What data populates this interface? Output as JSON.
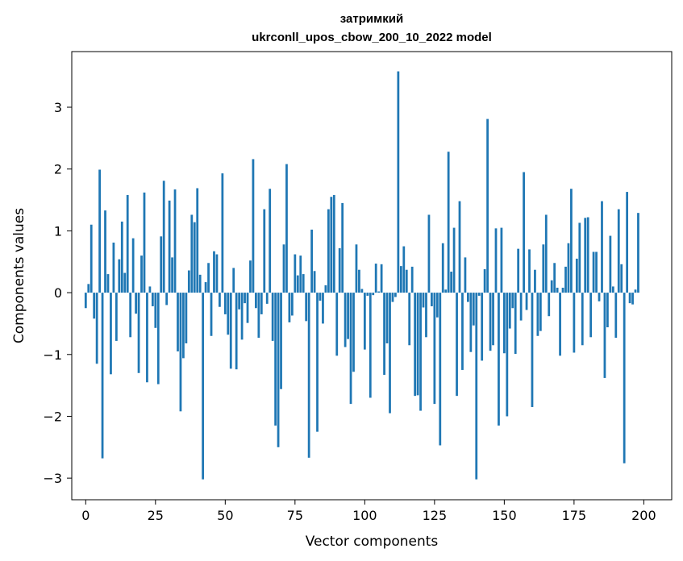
{
  "chart_data": {
    "type": "bar",
    "title": "затримкий",
    "subtitle": "ukrconll_upos_cbow_200_10_2022 model",
    "xlabel": "Vector components",
    "ylabel": "Components values",
    "xlim": [
      -5,
      210
    ],
    "ylim": [
      -3.35,
      3.9
    ],
    "x_ticks": [
      0,
      25,
      50,
      75,
      100,
      125,
      150,
      175,
      200
    ],
    "y_ticks": [
      -3,
      -2,
      -1,
      0,
      1,
      2,
      3
    ],
    "x_tick_labels": [
      "0",
      "25",
      "50",
      "75",
      "100",
      "125",
      "150",
      "175",
      "200"
    ],
    "y_tick_labels": [
      "−3",
      "−2",
      "−1",
      "0",
      "1",
      "2",
      "3"
    ],
    "grid": false,
    "bar_color": "#1f77b4",
    "values": [
      -0.25,
      0.14,
      1.1,
      -0.42,
      -1.15,
      1.99,
      -2.68,
      1.33,
      0.3,
      -1.32,
      0.81,
      -0.78,
      0.54,
      1.15,
      0.32,
      1.58,
      -0.72,
      0.88,
      -0.34,
      -1.3,
      0.6,
      1.62,
      -1.45,
      0.1,
      -0.22,
      -0.57,
      -1.48,
      0.91,
      1.81,
      -0.2,
      1.49,
      0.57,
      1.67,
      -0.95,
      -1.92,
      -1.06,
      -0.82,
      0.36,
      1.26,
      1.14,
      1.69,
      0.29,
      -3.02,
      0.17,
      0.48,
      -0.7,
      0.67,
      0.62,
      -0.23,
      1.93,
      -0.35,
      -0.68,
      -1.23,
      0.4,
      -1.24,
      -0.27,
      -0.76,
      -0.17,
      -0.49,
      0.52,
      2.16,
      -0.25,
      -0.73,
      -0.35,
      1.35,
      -0.18,
      1.68,
      -0.78,
      -2.15,
      -2.5,
      -1.56,
      0.78,
      2.08,
      -0.48,
      -0.37,
      0.62,
      0.28,
      0.6,
      0.3,
      -0.46,
      -2.67,
      1.02,
      0.35,
      -2.25,
      -0.13,
      -0.5,
      0.12,
      1.35,
      1.55,
      1.58,
      -1.02,
      0.72,
      1.45,
      -0.88,
      -0.75,
      -1.8,
      -1.28,
      0.78,
      0.37,
      0.06,
      -0.92,
      -0.05,
      -1.7,
      -0.04,
      0.47,
      0.02,
      0.46,
      -1.33,
      -0.82,
      -1.95,
      -0.15,
      -0.07,
      3.58,
      0.43,
      0.75,
      0.37,
      -0.85,
      0.42,
      -1.67,
      -1.66,
      -1.91,
      -0.24,
      -0.72,
      1.26,
      -0.22,
      -1.8,
      -0.4,
      -2.47,
      0.8,
      0.05,
      2.28,
      0.34,
      1.05,
      -1.67,
      1.48,
      -1.25,
      0.57,
      -0.15,
      -0.96,
      -0.53,
      -3.02,
      -0.05,
      -1.1,
      0.38,
      2.81,
      -0.94,
      -0.85,
      1.04,
      -2.15,
      1.05,
      -0.98,
      -2.0,
      -0.58,
      -0.25,
      -0.99,
      0.71,
      -0.45,
      1.95,
      -0.28,
      0.7,
      -1.85,
      0.37,
      -0.7,
      -0.62,
      0.78,
      1.26,
      -0.38,
      0.2,
      0.48,
      0.08,
      -1.02,
      0.08,
      0.42,
      0.8,
      1.68,
      -0.97,
      0.55,
      1.13,
      -0.85,
      1.21,
      1.22,
      -0.72,
      0.66,
      0.66,
      -0.14,
      1.48,
      -1.38,
      -0.56,
      0.92,
      0.1,
      -0.73,
      1.35,
      0.46,
      -2.76,
      1.63,
      -0.17,
      -0.19,
      0.05,
      1.29
    ]
  }
}
